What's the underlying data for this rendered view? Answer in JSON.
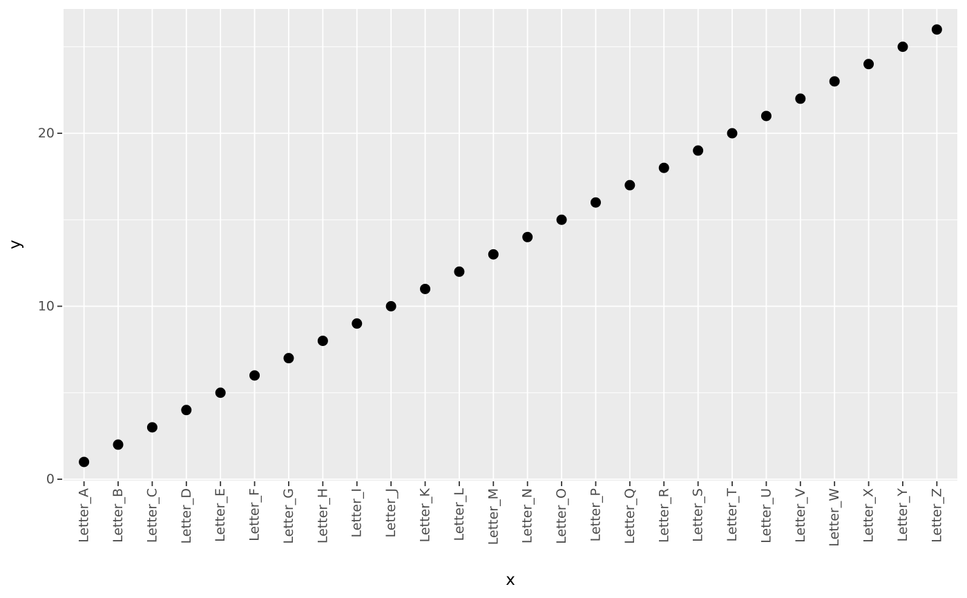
{
  "chart_data": {
    "type": "scatter",
    "title": "",
    "xlabel": "x",
    "ylabel": "y",
    "categories": [
      "Letter_A",
      "Letter_B",
      "Letter_C",
      "Letter_D",
      "Letter_E",
      "Letter_F",
      "Letter_G",
      "Letter_H",
      "Letter_I",
      "Letter_J",
      "Letter_K",
      "Letter_L",
      "Letter_M",
      "Letter_N",
      "Letter_O",
      "Letter_P",
      "Letter_Q",
      "Letter_R",
      "Letter_S",
      "Letter_T",
      "Letter_U",
      "Letter_V",
      "Letter_W",
      "Letter_X",
      "Letter_Y",
      "Letter_Z"
    ],
    "values": [
      1,
      2,
      3,
      4,
      5,
      6,
      7,
      8,
      9,
      10,
      11,
      12,
      13,
      14,
      15,
      16,
      17,
      18,
      19,
      20,
      21,
      22,
      23,
      24,
      25,
      26
    ],
    "ylim": [
      -0.3,
      27.3
    ],
    "y_major_ticks": [
      0,
      10,
      20
    ],
    "y_minor_gridlines": [
      5,
      15,
      25
    ],
    "grid": true,
    "legend_position": "none",
    "style": {
      "outer_background": "#FFFFFF",
      "panel_background": "#EBEBEB",
      "grid_color": "#FFFFFF",
      "point_color": "#000000",
      "point_radius": 7.5,
      "tick_mark_color": "#333333",
      "tick_label_color": "#4D4D4D",
      "axis_title_color": "#000000"
    }
  }
}
